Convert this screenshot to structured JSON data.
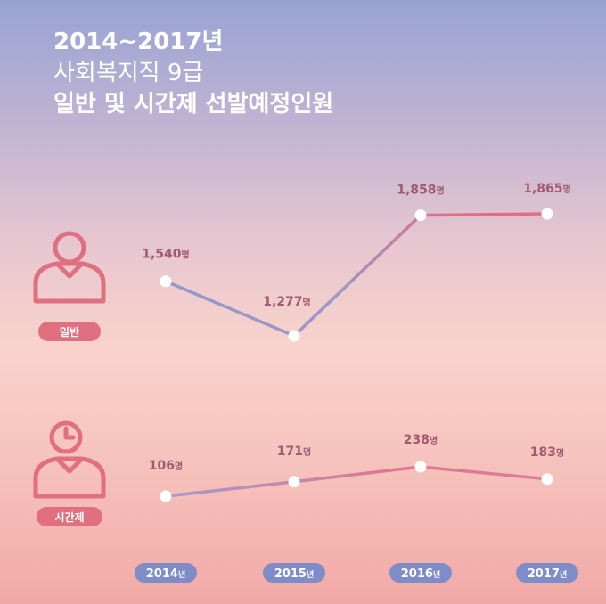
{
  "title": {
    "line1": "2014~2017년",
    "line2": "사회복지직 9급",
    "line3": "일반 및 시간제 선발예정인원"
  },
  "colors": {
    "line_blue": "#9199c9",
    "line_pink": "#e36c82",
    "value_text": "#a05a72",
    "pill_pink": "#e0707f",
    "pill_blue": "#7e8cc8",
    "icon_stroke": "#e0707f"
  },
  "icons": {
    "general": "person-icon",
    "parttime": "person-clock-icon"
  },
  "chart_data": {
    "type": "line",
    "categories": [
      "2014년",
      "2015년",
      "2016년",
      "2017년"
    ],
    "unit": "명",
    "series": [
      {
        "name": "일반",
        "values": [
          1540,
          1277,
          1858,
          1865
        ],
        "labels": [
          "1,540",
          "1,277",
          "1,858",
          "1,865"
        ]
      },
      {
        "name": "시간제",
        "values": [
          106,
          171,
          238,
          183
        ],
        "labels": [
          "106",
          "171",
          "238",
          "183"
        ]
      }
    ]
  }
}
